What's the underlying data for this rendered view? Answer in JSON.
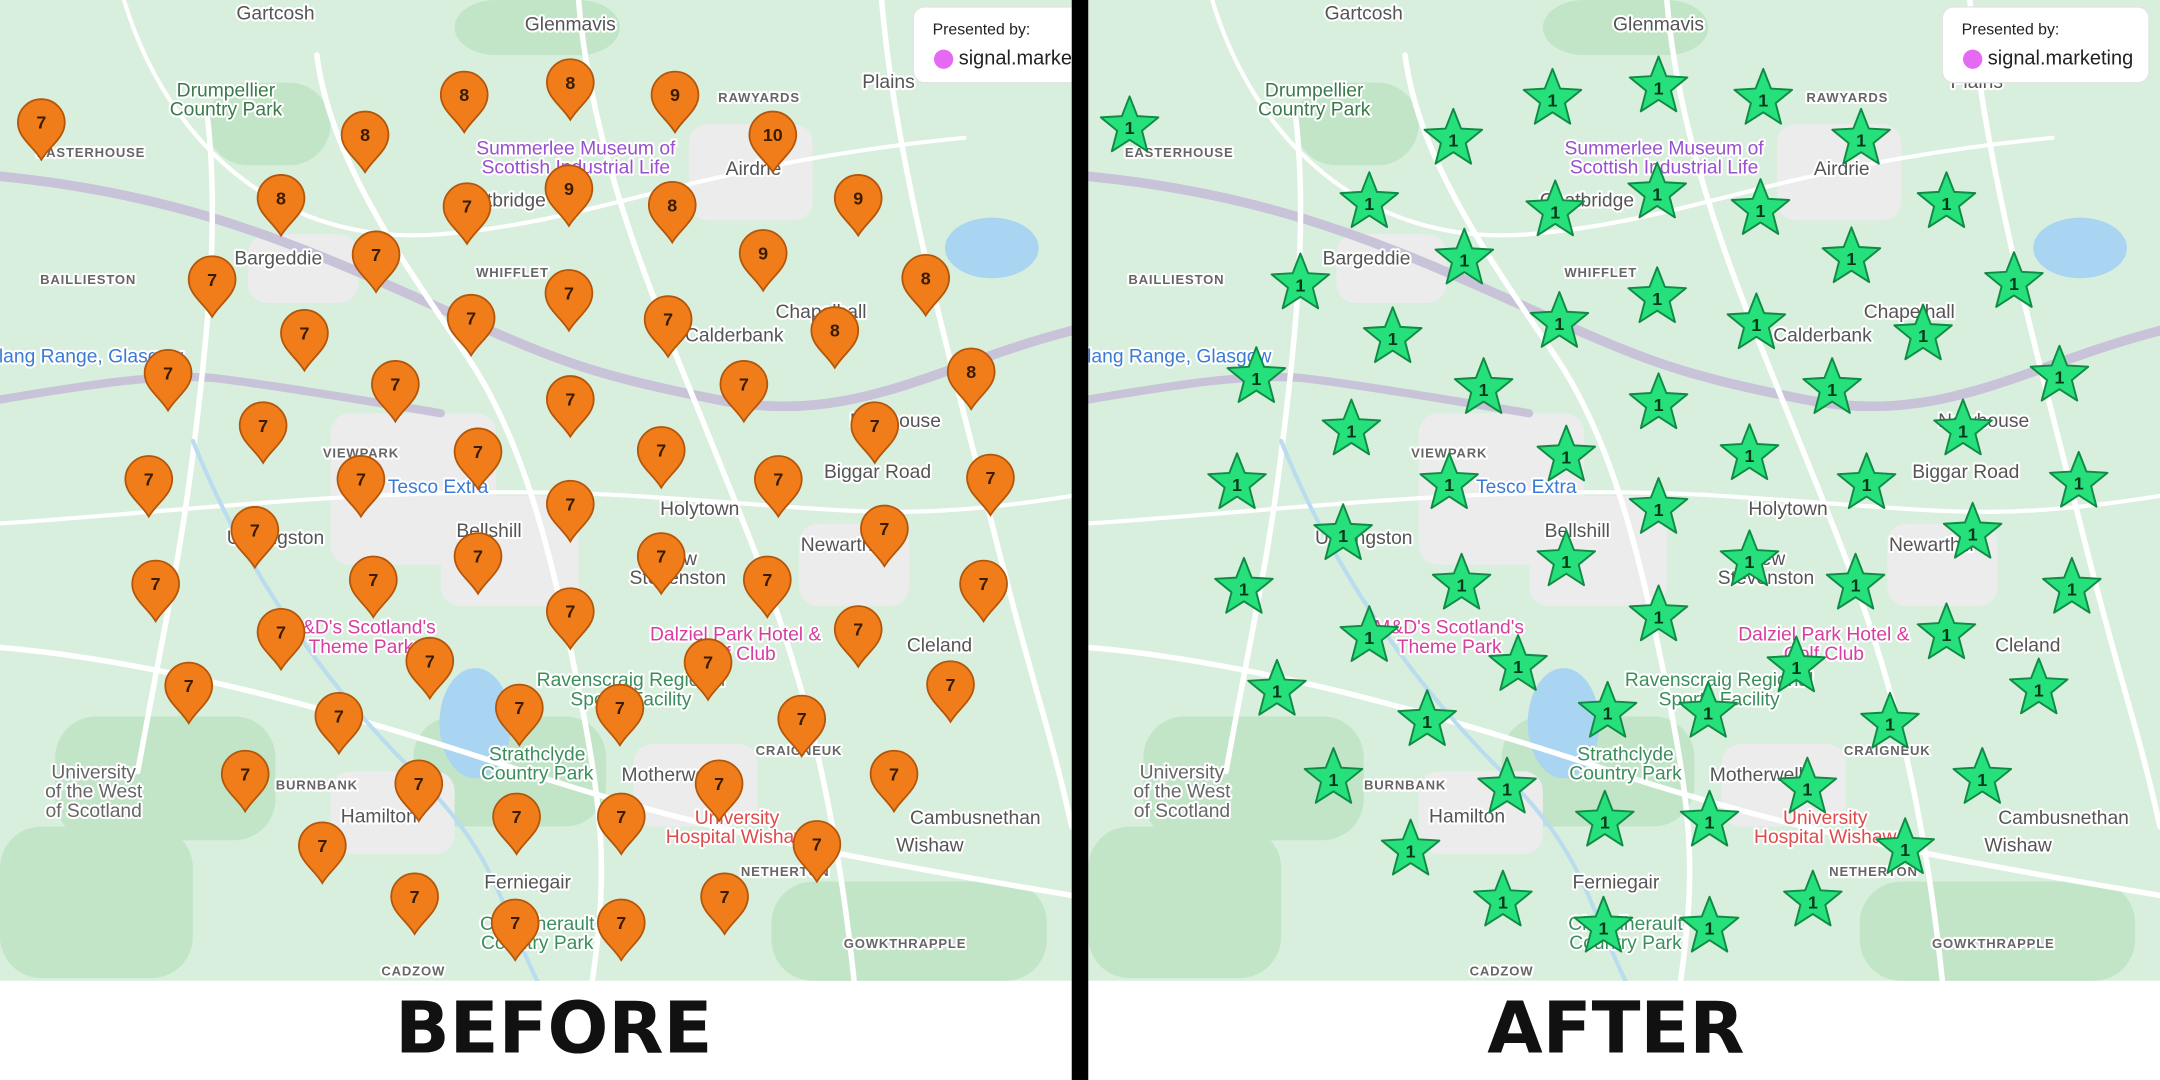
{
  "places": [
    [
      "Gartcosh"
    ],
    [
      "Glenmavis"
    ],
    [
      "Plains"
    ],
    [
      "Drumpellier",
      "Country Park"
    ],
    [
      "Summerlee Museum of",
      "Scottish Industrial Life"
    ],
    [
      "Airdrie"
    ],
    [
      "Coatbridge"
    ],
    [
      "Bargeddie"
    ],
    [
      "BAILLIESTON"
    ],
    [
      "EASTERHOUSE"
    ],
    [
      "WHIFFLET"
    ],
    [
      "Calderbank"
    ],
    [
      "Chapelhall"
    ],
    [
      "VIEWPARK"
    ],
    [
      "Tesco Extra"
    ],
    [
      "Bellshill"
    ],
    [
      "Holytown"
    ],
    [
      "Biggar Road"
    ],
    [
      "Newhouse"
    ],
    [
      "Newarthill"
    ],
    [
      "Uddingston"
    ],
    [
      "New",
      "Stevenston"
    ],
    [
      "M&D's Scotland's",
      "Theme Park"
    ],
    [
      "Dalziel Park Hotel &",
      "Golf Club"
    ],
    [
      "Cleland"
    ],
    [
      "Ravenscraig Regional",
      "Sports Facility"
    ],
    [
      "Strathclyde",
      "Country Park"
    ],
    [
      "Motherwell"
    ],
    [
      "University",
      "Hospital Wishaw"
    ],
    [
      "Cambusnethan"
    ],
    [
      "Wishaw"
    ],
    [
      "Hamilton"
    ],
    [
      "Ferniegair"
    ],
    [
      "Chatelherault",
      "Country Park"
    ],
    [
      "University",
      "of the West",
      "of Scotland"
    ],
    [
      "BURNBANK"
    ],
    [
      "CRAIGNEUK"
    ],
    [
      "NETHERTON"
    ],
    [
      "GOWKTHRAPPLE"
    ],
    [
      "CADZOW"
    ],
    [
      "RAWYARDS"
    ],
    [
      "Cambuslang Range, Glasgow"
    ]
  ],
  "maps": [
    {
      "caption": "BEFORE",
      "presented_by": "Presented by:",
      "brand": "signal.marketing",
      "pins": [
        8,
        8,
        9,
        10,
        8,
        8,
        7,
        9,
        8,
        9,
        7,
        7,
        9,
        7,
        8,
        7,
        7,
        7,
        8,
        7,
        7,
        7,
        7,
        8,
        7,
        7,
        7,
        7,
        7,
        7,
        7,
        7,
        7,
        7,
        7,
        7,
        7,
        7,
        7,
        7,
        7,
        7,
        7,
        7,
        7,
        7,
        7,
        7,
        7,
        7,
        7,
        7,
        7,
        7,
        7,
        7,
        7,
        7,
        7,
        7,
        7,
        7,
        7,
        7,
        7
      ]
    },
    {
      "caption": "AFTER",
      "presented_by": "Presented by:",
      "brand": "signal.marketing",
      "pins": [
        1,
        1,
        1,
        1,
        1,
        1,
        1,
        1,
        1,
        1,
        1,
        1,
        1,
        1,
        1,
        1,
        1,
        1,
        1,
        1,
        1,
        1,
        1,
        1,
        1,
        1,
        1,
        1,
        1,
        1,
        1,
        1,
        1,
        1,
        1,
        1,
        1,
        1,
        1,
        1,
        1,
        1,
        1,
        1,
        1,
        1,
        1,
        1,
        1,
        1,
        1,
        1,
        1,
        1,
        1,
        1,
        1,
        1,
        1,
        1,
        1,
        1,
        1,
        1,
        1
      ]
    }
  ]
}
